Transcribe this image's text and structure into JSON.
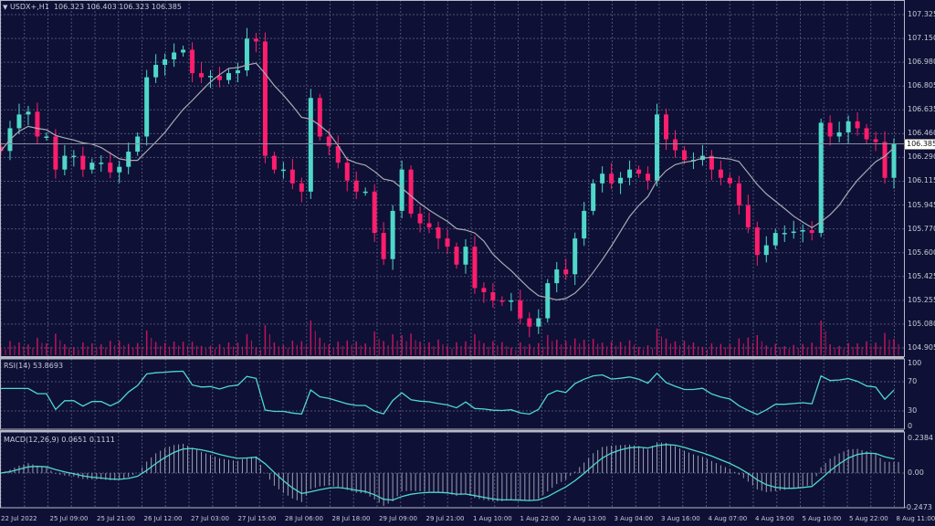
{
  "header": {
    "symbol": "USDX+,H1",
    "ohlc": "106.323 106.403 106.323 106.385",
    "menu_icon": "triangle-down-icon"
  },
  "colors": {
    "background": "#0e1036",
    "bull": "#4fd8c9",
    "bear": "#ff1d6c",
    "grid": "#4d5275",
    "ma": "#a9aab4",
    "volume": "#c0145a",
    "rsi": "#4fd8c9",
    "macd_signal": "#4fd8c9",
    "macd_hist": "#9c9fb0"
  },
  "price_axis": {
    "ticks": [
      "107.325",
      "107.150",
      "106.980",
      "106.805",
      "106.635",
      "106.460",
      "106.290",
      "106.115",
      "105.945",
      "105.770",
      "105.600",
      "105.425",
      "105.255",
      "105.080",
      "104.905"
    ],
    "current_price": "106.385"
  },
  "rsi": {
    "label": "RSI(14) 53.8693",
    "ticks": [
      "100",
      "70",
      "30",
      "0"
    ]
  },
  "macd": {
    "label": "MACD(12,26,9) 0.0651 0.1111",
    "ticks": [
      "0.2384",
      "0.00",
      "-0.2473"
    ]
  },
  "time_axis": [
    "22 Jul 2022",
    "25 Jul 09:00",
    "25 Jul 21:00",
    "26 Jul 12:00",
    "27 Jul 03:00",
    "27 Jul 15:00",
    "28 Jul 06:00",
    "28 Jul 18:00",
    "29 Jul 09:00",
    "29 Jul 21:00",
    "1 Aug 10:00",
    "1 Aug 22:00",
    "2 Aug 13:00",
    "3 Aug 04:00",
    "3 Aug 16:00",
    "4 Aug 07:00",
    "4 Aug 19:00",
    "5 Aug 10:00",
    "5 Aug 22:00",
    "8 Aug 11:00"
  ],
  "chart_data": {
    "type": "candlestick",
    "ylim": [
      104.905,
      107.325
    ],
    "grid": true,
    "closes": [
      106.335,
      106.5,
      106.6,
      106.62,
      106.44,
      106.44,
      106.2,
      106.3,
      106.3,
      106.2,
      106.25,
      106.25,
      106.18,
      106.22,
      106.33,
      106.44,
      106.87,
      106.96,
      107.0,
      107.05,
      107.07,
      106.9,
      106.87,
      106.88,
      106.85,
      106.9,
      106.92,
      107.15,
      107.13,
      106.3,
      106.2,
      106.2,
      106.1,
      106.04,
      106.72,
      106.44,
      106.37,
      106.25,
      106.12,
      106.04,
      106.04,
      105.74,
      105.55,
      105.9,
      106.2,
      105.88,
      105.81,
      105.78,
      105.7,
      105.64,
      105.51,
      105.64,
      105.34,
      105.31,
      105.25,
      105.24,
      105.25,
      105.12,
      105.06,
      105.12,
      105.375,
      105.475,
      105.44,
      105.7,
      105.9,
      106.1,
      106.17,
      106.1,
      106.14,
      106.2,
      106.17,
      106.12,
      106.6,
      106.42,
      106.34,
      106.27,
      106.27,
      106.3,
      106.2,
      106.14,
      106.1,
      105.94,
      105.78,
      105.58,
      105.65,
      105.74,
      105.74,
      105.75,
      105.76,
      105.74,
      106.54,
      106.44,
      106.47,
      106.55,
      106.5,
      106.42,
      106.4,
      106.14,
      106.385
    ]
  }
}
